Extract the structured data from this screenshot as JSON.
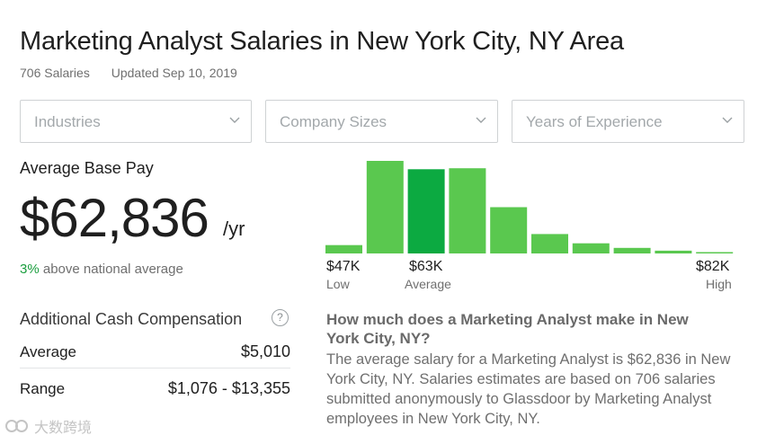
{
  "page": {
    "title": "Marketing Analyst Salaries in New York City, NY Area",
    "salaries_count": "706 Salaries",
    "updated": "Updated Sep 10, 2019"
  },
  "filters": [
    {
      "placeholder": "Industries",
      "icon": "chevron-down-icon"
    },
    {
      "placeholder": "Company Sizes",
      "icon": "chevron-down-icon"
    },
    {
      "placeholder": "Years of Experience",
      "icon": "chevron-down-icon"
    }
  ],
  "average": {
    "label": "Average Base Pay",
    "value": "$62,836",
    "unit": "/yr",
    "pct": "3%",
    "comparison": "above national average"
  },
  "additional": {
    "label": "Additional Cash Compensation",
    "help_icon": "question-circle-icon",
    "help_glyph": "?",
    "rows": [
      {
        "label": "Average",
        "value": "$5,010"
      },
      {
        "label": "Range",
        "value": "$1,076 - $13,355"
      }
    ]
  },
  "chart_data": {
    "type": "bar",
    "title": "",
    "xlabel": "",
    "ylabel": "",
    "values": [
      9,
      100,
      91,
      92,
      50,
      21,
      11,
      6,
      3,
      1
    ],
    "highlight_index": 2,
    "colors": {
      "bar": "#5ac84f",
      "highlight": "#0caa41"
    },
    "ticks": [
      {
        "value": "$47K",
        "label": "Low"
      },
      {
        "value": "$63K",
        "label": "Average"
      },
      {
        "value": "$82K",
        "label": "High"
      }
    ]
  },
  "faq": {
    "question": "How much does a Marketing Analyst make in New York City, NY?",
    "answer": "The average salary for a Marketing Analyst is $62,836 in New York City, NY. Salaries estimates are based on 706 salaries submitted anonymously to Glassdoor by Marketing Analyst employees in New York City, NY."
  },
  "watermark": {
    "text": "大数跨境",
    "icon": "watermark-logo-icon"
  }
}
